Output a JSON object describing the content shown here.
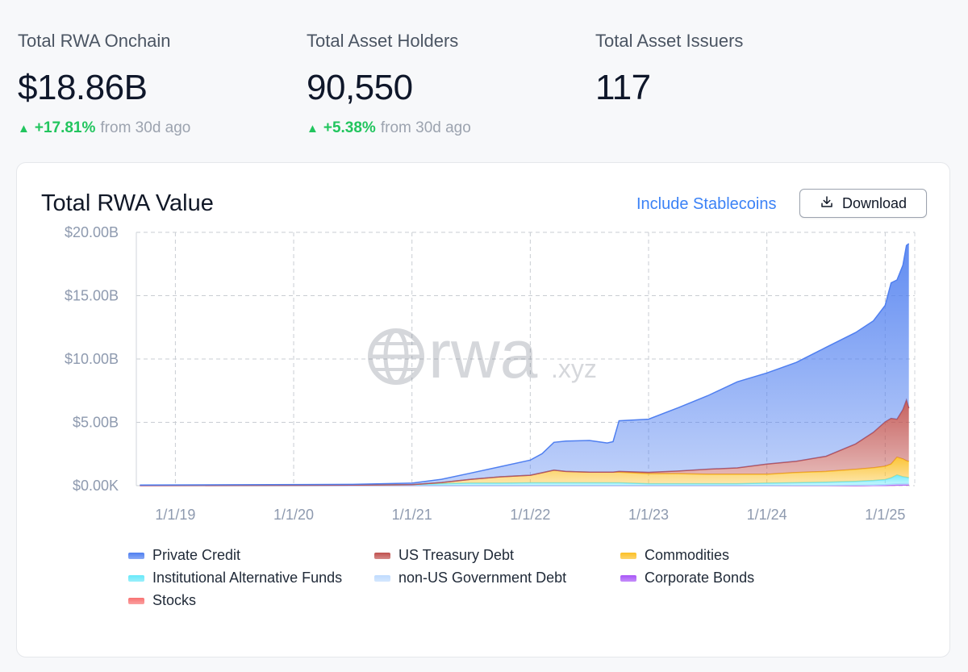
{
  "stats": [
    {
      "label": "Total RWA Onchain",
      "value": "$18.86B",
      "change": "+17.81%",
      "suffix": "from 30d ago"
    },
    {
      "label": "Total Asset Holders",
      "value": "90,550",
      "change": "+5.38%",
      "suffix": "from 30d ago"
    },
    {
      "label": "Total Asset Issuers",
      "value": "117"
    }
  ],
  "card": {
    "title": "Total RWA Value",
    "toggle_label": "Include Stablecoins",
    "download_label": "Download",
    "watermark_text": "rwa",
    "watermark_suffix": ".xyz"
  },
  "chart_data": {
    "type": "area",
    "stacked": true,
    "title": "Total RWA Value",
    "y_ticks": [
      "$0.00K",
      "$5.00B",
      "$10.00B",
      "$15.00B",
      "$20.00B"
    ],
    "y_tick_values": [
      0,
      5,
      10,
      15,
      20
    ],
    "ylim": [
      0,
      20
    ],
    "y_unit": "billions USD",
    "x_ticks": [
      "1/1/19",
      "1/1/20",
      "1/1/21",
      "1/1/22",
      "1/1/23",
      "1/1/24",
      "1/1/25"
    ],
    "x_tick_values": [
      2019.0,
      2020.0,
      2021.0,
      2022.0,
      2023.0,
      2024.0,
      2025.0
    ],
    "xlim": [
      2018.67,
      2025.25
    ],
    "grid": true,
    "legend_position": "bottom",
    "x": [
      2018.7,
      2019.5,
      2020.5,
      2021.0,
      2021.25,
      2021.5,
      2021.75,
      2022.0,
      2022.1,
      2022.2,
      2022.3,
      2022.5,
      2022.65,
      2022.7,
      2022.75,
      2023.0,
      2023.25,
      2023.5,
      2023.75,
      2024.0,
      2024.25,
      2024.5,
      2024.75,
      2024.9,
      2025.0,
      2025.05,
      2025.1,
      2025.15,
      2025.18,
      2025.2
    ],
    "series": [
      {
        "name": "Stocks",
        "color": "#f87171",
        "values": [
          0,
          0,
          0,
          0,
          0,
          0,
          0,
          0,
          0,
          0,
          0,
          0,
          0,
          0,
          0,
          0,
          0,
          0,
          0,
          0,
          0,
          0,
          0,
          0.01,
          0.02,
          0.03,
          0.04,
          0.05,
          0.06,
          0.06
        ]
      },
      {
        "name": "Corporate Bonds",
        "color": "#a855f7",
        "values": [
          0,
          0,
          0,
          0,
          0,
          0,
          0,
          0,
          0,
          0,
          0,
          0,
          0,
          0,
          0,
          0,
          0,
          0,
          0,
          0,
          0,
          0,
          0,
          0,
          0,
          0,
          0,
          0,
          0,
          0
        ]
      },
      {
        "name": "non-US Government Debt",
        "color": "#bfdbfe",
        "values": [
          0,
          0,
          0,
          0,
          0,
          0,
          0,
          0,
          0,
          0,
          0,
          0,
          0,
          0,
          0,
          0,
          0,
          0,
          0,
          0,
          0.01,
          0.02,
          0.04,
          0.05,
          0.06,
          0.08,
          0.1,
          0.1,
          0.1,
          0.1
        ]
      },
      {
        "name": "Institutional Alternative Funds",
        "color": "#67e8f9",
        "values": [
          0.02,
          0.03,
          0.05,
          0.08,
          0.15,
          0.2,
          0.2,
          0.22,
          0.22,
          0.22,
          0.22,
          0.22,
          0.22,
          0.22,
          0.22,
          0.15,
          0.15,
          0.15,
          0.15,
          0.2,
          0.22,
          0.25,
          0.3,
          0.35,
          0.4,
          0.5,
          0.7,
          0.55,
          0.5,
          0.45
        ]
      },
      {
        "name": "Commodities",
        "color": "#fbbf24",
        "values": [
          0,
          0,
          0,
          0,
          0.1,
          0.3,
          0.5,
          0.6,
          0.8,
          1.0,
          0.9,
          0.85,
          0.85,
          0.85,
          0.85,
          0.8,
          0.8,
          0.75,
          0.75,
          0.7,
          0.8,
          0.85,
          0.95,
          1.0,
          1.05,
          1.1,
          1.4,
          1.4,
          1.3,
          1.3
        ]
      },
      {
        "name": "US Treasury Debt",
        "color": "#c0504d",
        "values": [
          0,
          0,
          0,
          0,
          0,
          0,
          0,
          0,
          0,
          0,
          0,
          0,
          0,
          0,
          0.05,
          0.1,
          0.2,
          0.4,
          0.5,
          0.8,
          0.9,
          1.2,
          2.0,
          2.8,
          3.5,
          3.6,
          3.0,
          3.9,
          4.8,
          4.2
        ]
      },
      {
        "name": "Private Credit",
        "color": "#4f7ff0",
        "values": [
          0.03,
          0.04,
          0.05,
          0.12,
          0.25,
          0.5,
          0.8,
          1.2,
          1.5,
          2.2,
          2.4,
          2.5,
          2.3,
          2.4,
          4.0,
          4.2,
          5.0,
          5.8,
          6.8,
          7.2,
          7.8,
          8.6,
          8.8,
          8.8,
          9.2,
          10.7,
          11.0,
          11.4,
          12.2,
          13.0
        ]
      }
    ]
  },
  "legend": [
    {
      "label": "Private Credit",
      "color": "#4f7ff0"
    },
    {
      "label": "US Treasury Debt",
      "color": "#c0504d"
    },
    {
      "label": "Commodities",
      "color": "#fbbf24"
    },
    {
      "label": "Institutional Alternative Funds",
      "color": "#67e8f9"
    },
    {
      "label": "non-US Government Debt",
      "color": "#bfdbfe"
    },
    {
      "label": "Corporate Bonds",
      "color": "#a855f7"
    },
    {
      "label": "Stocks",
      "color": "#f87171"
    }
  ]
}
